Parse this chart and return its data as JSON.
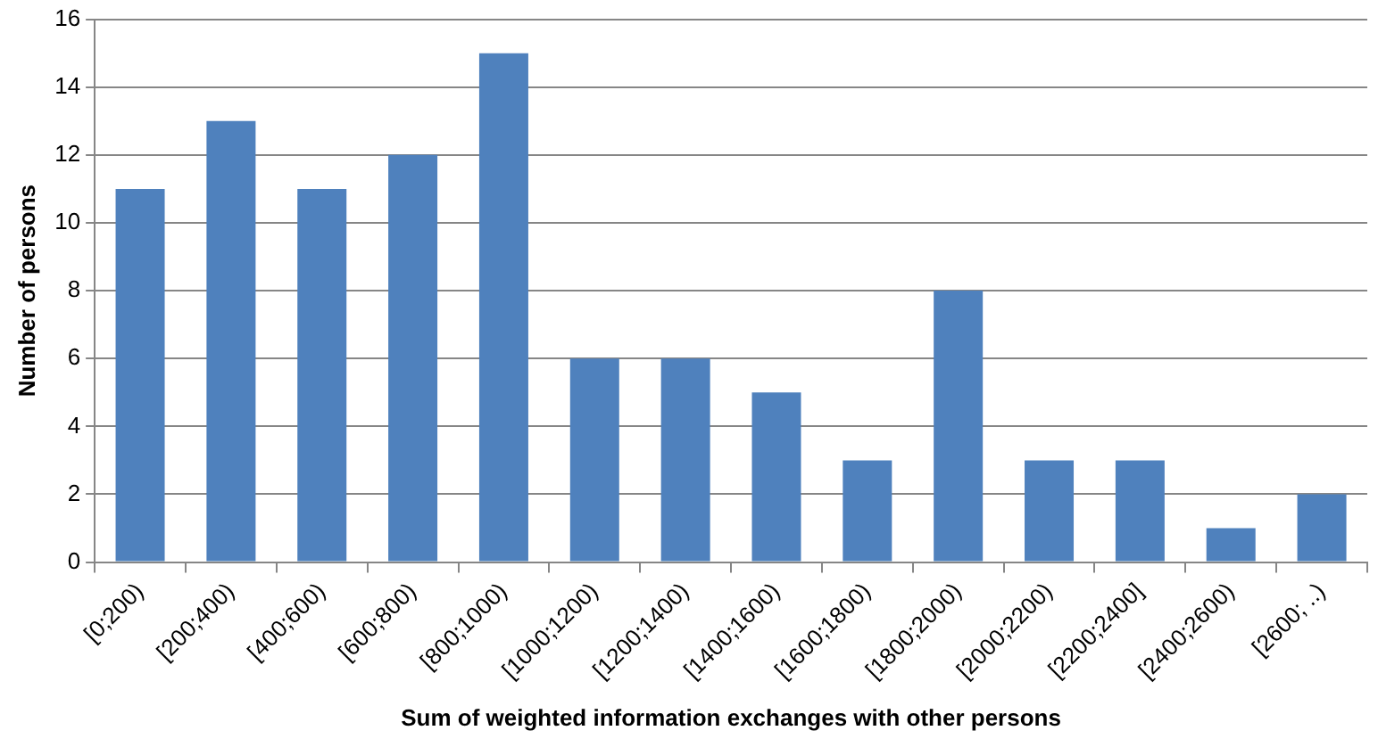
{
  "chart_data": {
    "type": "bar",
    "xlabel": "Sum of weighted information exchanges with other persons",
    "ylabel": "Number of persons",
    "categories": [
      "[0;200)",
      "[200;400)",
      "[400;600)",
      "[600;800)",
      "[800;1000)",
      "[1000;1200)",
      "[1200;1400)",
      "[1400;1600)",
      "[1600;1800)",
      "[1800;2000)",
      "[2000;2200)",
      "[2200;2400]",
      "[2400;2600)",
      "[2600; ..)"
    ],
    "values": [
      11,
      13,
      11,
      12,
      15,
      6,
      6,
      5,
      3,
      8,
      3,
      3,
      1,
      2
    ],
    "color": "#4f81bd",
    "ylim": [
      0,
      16
    ],
    "yticks": [
      0,
      2,
      4,
      6,
      8,
      10,
      12,
      14,
      16
    ],
    "grid": "y",
    "legend": false
  }
}
